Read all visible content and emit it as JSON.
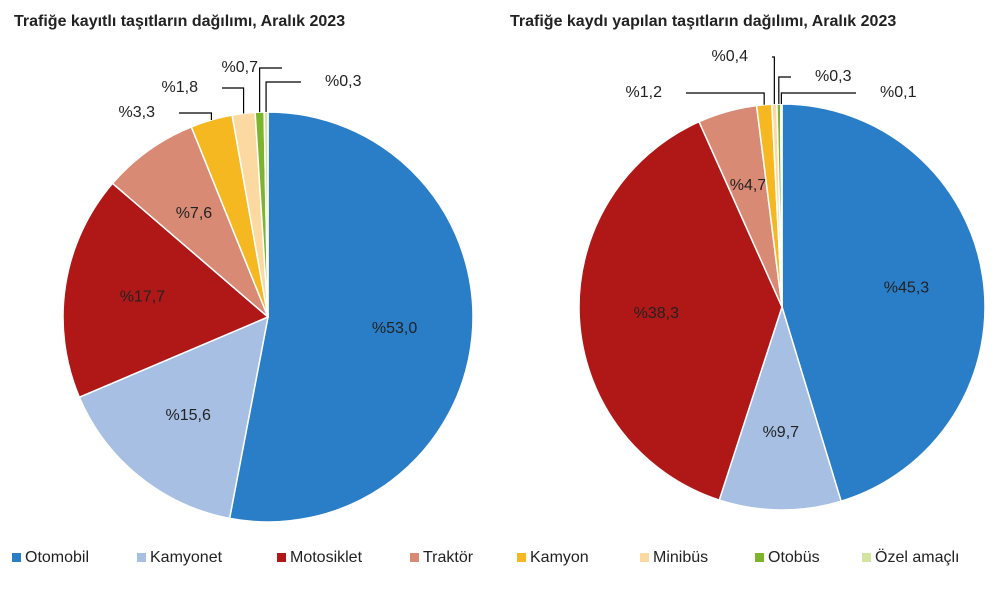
{
  "chart_data": [
    {
      "type": "pie",
      "title": "Trafiğe kayıtlı taşıtların dağılımı, Aralık 2023",
      "categories": [
        "Otomobil",
        "Kamyonet",
        "Motosiklet",
        "Traktör",
        "Kamyon",
        "Minibüs",
        "Otobüs",
        "Özel amaçlı"
      ],
      "values": [
        53.0,
        15.6,
        17.7,
        7.6,
        3.3,
        1.8,
        0.7,
        0.3
      ],
      "value_labels": [
        "%53,0",
        "%15,6",
        "%17,7",
        "%7,6",
        "%3,3",
        "%1,8",
        "%0,7",
        "%0,3"
      ],
      "colors": [
        "#2a7ec8",
        "#a6bfe3",
        "#b01818",
        "#d98a74",
        "#f5b820",
        "#fbd9a0",
        "#7cb52c",
        "#d3e3a0"
      ]
    },
    {
      "type": "pie",
      "title": "Trafiğe kaydı yapılan taşıtların dağılımı, Aralık 2023",
      "categories": [
        "Otomobil",
        "Kamyonet",
        "Motosiklet",
        "Traktör",
        "Kamyon",
        "Minibüs",
        "Otobüs",
        "Özel amaçlı"
      ],
      "values": [
        45.3,
        9.7,
        38.3,
        4.7,
        1.2,
        0.4,
        0.3,
        0.1
      ],
      "value_labels": [
        "%45,3",
        "%9,7",
        "%38,3",
        "%4,7",
        "%1,2",
        "%0,4",
        "%0,3",
        "%0,1"
      ],
      "colors": [
        "#2a7ec8",
        "#a6bfe3",
        "#b01818",
        "#d98a74",
        "#f5b820",
        "#fbd9a0",
        "#7cb52c",
        "#d3e3a0"
      ]
    }
  ]
}
